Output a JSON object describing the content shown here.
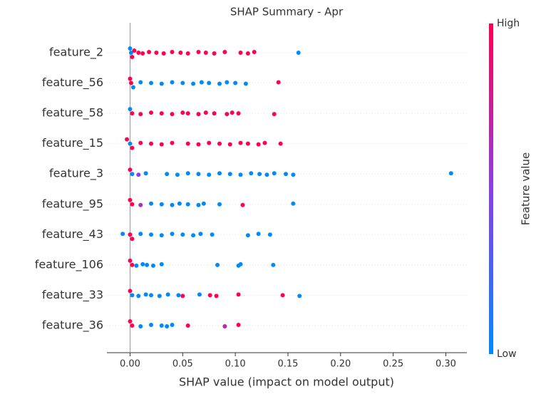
{
  "chart_data": {
    "type": "beeswarm",
    "title": "SHAP Summary - Apr",
    "xlabel": "SHAP value (impact on model output)",
    "colorbar": {
      "label": "Feature value",
      "high": "High",
      "low": "Low"
    },
    "colormap": [
      "#008bfb",
      "#8c3fe0",
      "#ff0052"
    ],
    "xlim": [
      -0.022,
      0.32
    ],
    "xticks": [
      {
        "value": 0,
        "label": "0.00"
      },
      {
        "value": 0.05,
        "label": "0.05"
      },
      {
        "value": 0.1,
        "label": "0.10"
      },
      {
        "value": 0.15,
        "label": "0.15"
      },
      {
        "value": 0.2,
        "label": "0.20"
      },
      {
        "value": 0.25,
        "label": "0.25"
      },
      {
        "value": 0.3,
        "label": "0.30"
      }
    ],
    "series": [
      {
        "name": "feature_2",
        "values": [
          0,
          0.001,
          0.002,
          0.004,
          0.008,
          0.012,
          0.018,
          0.025,
          0.032,
          0.04,
          0.048,
          0.055,
          0.065,
          0.072,
          0.08,
          0.09,
          0.105,
          0.112,
          0.118,
          0.16
        ],
        "feature_values": [
          0,
          0,
          1,
          1,
          1,
          1,
          1,
          1,
          1,
          1,
          1,
          1,
          1,
          1,
          1,
          1,
          1,
          1,
          1,
          0
        ]
      },
      {
        "name": "feature_56",
        "values": [
          0,
          0.001,
          0.003,
          0.01,
          0.02,
          0.03,
          0.04,
          0.05,
          0.06,
          0.068,
          0.075,
          0.085,
          0.092,
          0.1,
          0.11,
          0.141
        ],
        "feature_values": [
          1,
          1,
          0,
          0,
          0,
          0,
          0,
          0,
          0,
          0,
          0,
          0,
          0,
          0,
          0,
          1
        ]
      },
      {
        "name": "feature_58",
        "values": [
          0,
          0.002,
          0.01,
          0.02,
          0.03,
          0.04,
          0.05,
          0.055,
          0.065,
          0.072,
          0.08,
          0.092,
          0.097,
          0.103,
          0.137
        ],
        "feature_values": [
          0,
          1,
          1,
          1,
          1,
          1,
          1,
          1,
          1,
          1,
          1,
          1,
          1,
          1,
          1
        ]
      },
      {
        "name": "feature_15",
        "values": [
          -0.003,
          0,
          0.002,
          0.01,
          0.02,
          0.03,
          0.04,
          0.055,
          0.065,
          0.075,
          0.085,
          0.095,
          0.105,
          0.112,
          0.122,
          0.128,
          0.143
        ],
        "feature_values": [
          1,
          0,
          1,
          1,
          1,
          1,
          1,
          1,
          1,
          1,
          1,
          1,
          1,
          1,
          1,
          1,
          1
        ]
      },
      {
        "name": "feature_3",
        "values": [
          0,
          0.002,
          0.008,
          0.015,
          0.035,
          0.045,
          0.055,
          0.065,
          0.075,
          0.085,
          0.095,
          0.105,
          0.115,
          0.123,
          0.13,
          0.137,
          0.148,
          0.155,
          0.305
        ],
        "feature_values": [
          1,
          0,
          0.5,
          0,
          0,
          0,
          0,
          0,
          0,
          0,
          0,
          0,
          0,
          0,
          0,
          0,
          0,
          0,
          0
        ]
      },
      {
        "name": "feature_95",
        "values": [
          0,
          0.002,
          0.01,
          0.02,
          0.03,
          0.04,
          0.047,
          0.055,
          0.065,
          0.07,
          0.085,
          0.107,
          0.155
        ],
        "feature_values": [
          1,
          1,
          0.6,
          0,
          0,
          0,
          0,
          0,
          0,
          0,
          0,
          1,
          0
        ]
      },
      {
        "name": "feature_43",
        "values": [
          -0.007,
          0,
          0.002,
          0.01,
          0.02,
          0.03,
          0.04,
          0.05,
          0.06,
          0.067,
          0.078,
          0.112,
          0.122,
          0.133
        ],
        "feature_values": [
          0,
          1,
          1,
          0,
          0,
          0,
          0,
          0,
          0,
          0,
          0,
          0,
          0,
          0
        ]
      },
      {
        "name": "feature_106",
        "values": [
          0,
          0.002,
          0.006,
          0.012,
          0.016,
          0.022,
          0.03,
          0.083,
          0.103,
          0.105,
          0.136
        ],
        "feature_values": [
          1,
          1,
          0,
          0,
          0,
          0,
          0,
          0,
          0,
          0,
          0
        ]
      },
      {
        "name": "feature_33",
        "values": [
          0,
          0.002,
          0.008,
          0.015,
          0.02,
          0.028,
          0.036,
          0.046,
          0.05,
          0.066,
          0.076,
          0.082,
          0.103,
          0.145,
          0.161
        ],
        "feature_values": [
          1,
          0,
          0,
          0,
          0,
          0,
          0,
          0,
          1,
          0,
          1,
          1,
          1,
          1,
          0
        ]
      },
      {
        "name": "feature_36",
        "values": [
          0,
          0.002,
          0.01,
          0.02,
          0.03,
          0.035,
          0.04,
          0.055,
          0.09,
          0.103
        ],
        "feature_values": [
          1,
          1,
          0,
          0,
          0,
          0,
          0,
          1,
          0.7,
          1
        ]
      }
    ]
  }
}
